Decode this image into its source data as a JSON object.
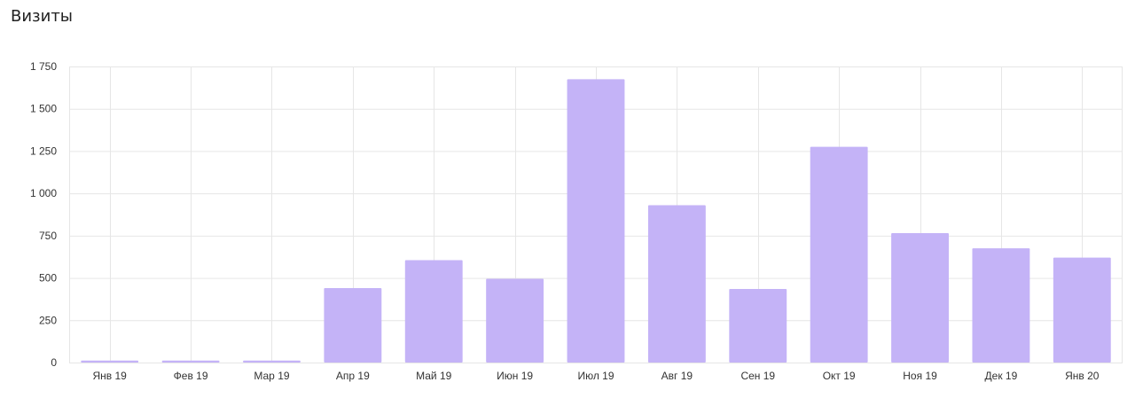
{
  "colors": {
    "bar": "#c4b3f7",
    "grid": "#e6e6e6",
    "axis_text": "#333333"
  },
  "chart_data": {
    "type": "bar",
    "title": "Визиты",
    "categories": [
      "Янв 19",
      "Фев 19",
      "Мар 19",
      "Апр 19",
      "Май 19",
      "Июн 19",
      "Июл 19",
      "Авг 19",
      "Сен 19",
      "Окт 19",
      "Ноя 19",
      "Дек 19",
      "Янв 20"
    ],
    "values": [
      12,
      12,
      12,
      440,
      605,
      495,
      1675,
      930,
      435,
      1275,
      765,
      675,
      620
    ],
    "ylim": [
      0,
      1750
    ],
    "yticks": [
      0,
      250,
      500,
      750,
      1000,
      1250,
      1500,
      1750
    ],
    "ytick_labels": [
      "0",
      "250",
      "500",
      "750",
      "1 000",
      "1 250",
      "1 500",
      "1 750"
    ],
    "grid": true,
    "legend": "none"
  }
}
